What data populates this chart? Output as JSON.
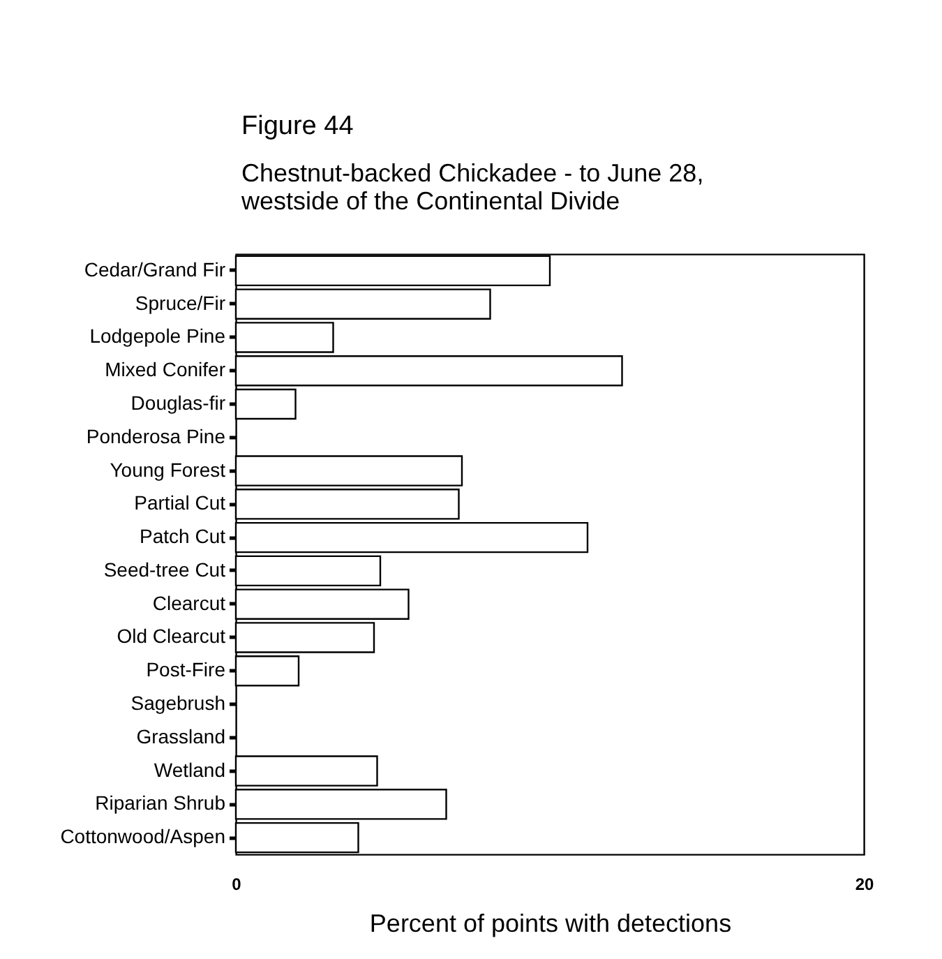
{
  "chart_data": {
    "type": "bar",
    "orientation": "horizontal",
    "title": "Figure 44",
    "subtitle": "Chestnut-backed Chickadee - to June 28,\nwestside of the Continental Divide",
    "xlabel": "Percent of points with detections",
    "categories": [
      "Cedar/Grand Fir",
      "Spruce/Fir",
      "Lodgepole Pine",
      "Mixed Conifer",
      "Douglas-fir",
      "Ponderosa Pine",
      "Young Forest",
      "Partial Cut",
      "Patch Cut",
      "Seed-tree Cut",
      "Clearcut",
      "Old Clearcut",
      "Post-Fire",
      "Sagebrush",
      "Grassland",
      "Wetland",
      "Riparian Shrub",
      "Cottonwood/Aspen"
    ],
    "values": [
      10.0,
      8.1,
      3.1,
      12.3,
      1.9,
      0,
      7.2,
      7.1,
      11.2,
      4.6,
      5.5,
      4.4,
      2.0,
      0,
      0,
      4.5,
      6.7,
      3.9
    ],
    "color": "#ffffff",
    "xlim": [
      0,
      20
    ],
    "xticks": [
      0,
      20
    ],
    "grid": false
  }
}
